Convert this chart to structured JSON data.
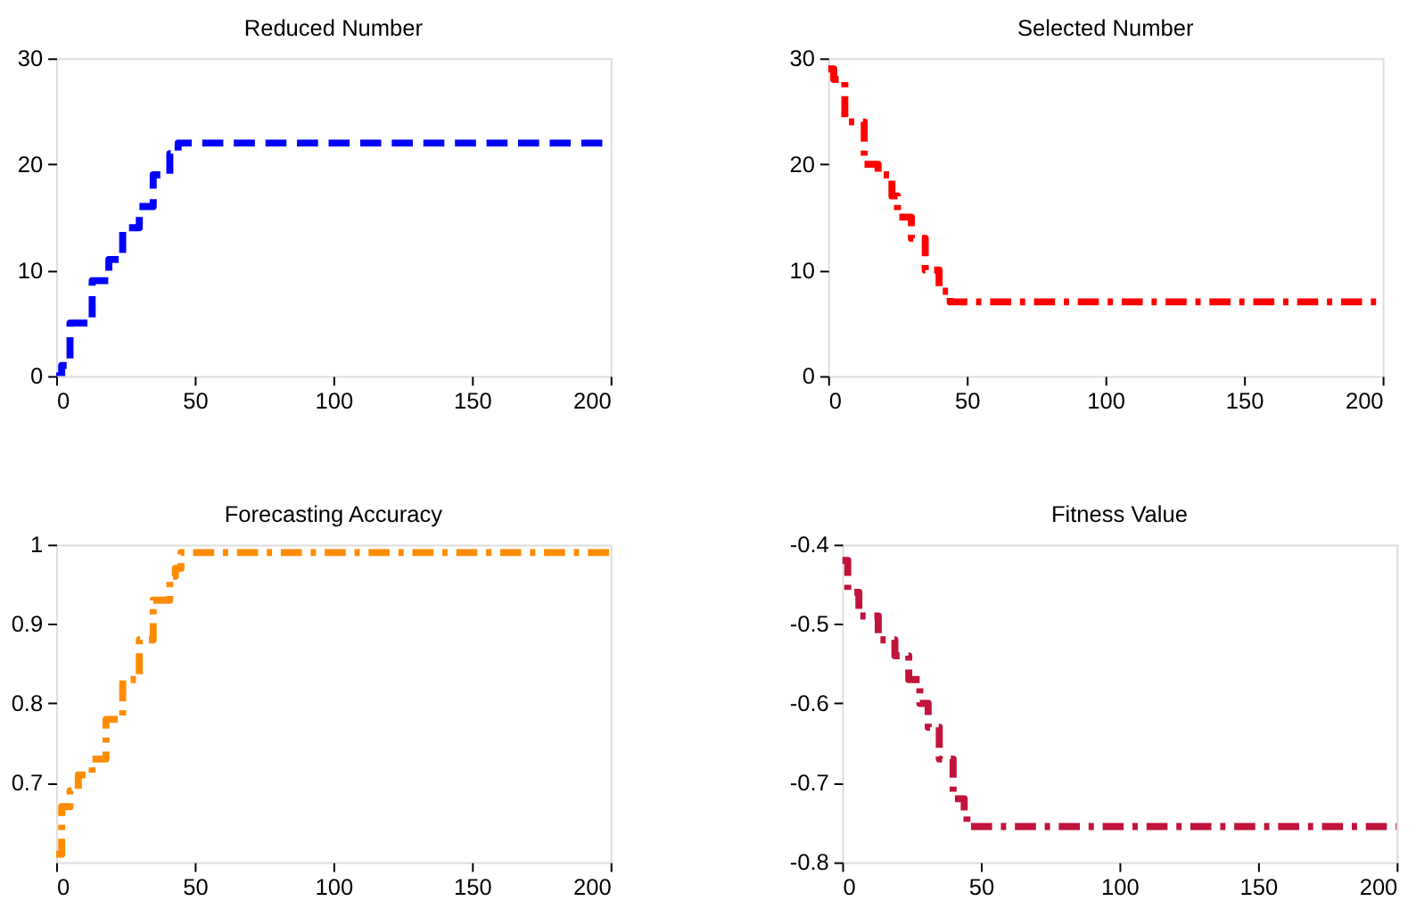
{
  "chart_data": [
    {
      "type": "step",
      "title": "Reduced Number",
      "xlim": [
        0,
        200
      ],
      "xticks": [
        0,
        50,
        100,
        150,
        200
      ],
      "ylim": [
        0,
        30
      ],
      "yticks": [
        0,
        10,
        20,
        30
      ],
      "grid": false,
      "line_style": "dashed",
      "series": [
        {
          "color": "#0000ff",
          "x": [
            0,
            2,
            5,
            13,
            19,
            24,
            30,
            35,
            41,
            44,
            200
          ],
          "values": [
            0,
            1,
            5,
            9,
            11,
            14,
            16,
            19,
            21,
            22,
            22
          ]
        }
      ]
    },
    {
      "type": "step",
      "title": "Selected Number",
      "xlim": [
        0,
        200
      ],
      "xticks": [
        0,
        50,
        100,
        150,
        200
      ],
      "ylim": [
        0,
        30
      ],
      "yticks": [
        0,
        10,
        20,
        30
      ],
      "grid": false,
      "line_style": "dashdot",
      "series": [
        {
          "color": "#ff0000",
          "x": [
            0,
            2,
            6,
            13,
            18,
            23,
            25,
            30,
            35,
            40,
            44,
            200
          ],
          "values": [
            29,
            28,
            24,
            20,
            19,
            17,
            15,
            13,
            10,
            8,
            7,
            7
          ]
        }
      ]
    },
    {
      "type": "step",
      "title": "Forecasting Accuracy",
      "xlim": [
        0,
        200
      ],
      "xticks": [
        0,
        50,
        100,
        150,
        200
      ],
      "ylim": [
        0.6,
        1
      ],
      "yticks": [
        0.7,
        0.8,
        0.9,
        1
      ],
      "grid": false,
      "line_style": "dashdot",
      "series": [
        {
          "color": "#ff8c00",
          "x": [
            0,
            2,
            5,
            8,
            13,
            18,
            24,
            30,
            35,
            41,
            43,
            45,
            200
          ],
          "values": [
            0.61,
            0.67,
            0.69,
            0.71,
            0.73,
            0.78,
            0.83,
            0.88,
            0.93,
            0.96,
            0.97,
            0.99,
            0.99
          ]
        }
      ]
    },
    {
      "type": "step",
      "title": "Fitness Value",
      "xlim": [
        0,
        200
      ],
      "xticks": [
        0,
        50,
        100,
        150,
        200
      ],
      "ylim": [
        -0.8,
        -0.4
      ],
      "yticks": [
        -0.8,
        -0.7,
        -0.6,
        -0.5,
        -0.4
      ],
      "grid": false,
      "line_style": "dashdot",
      "series": [
        {
          "color": "#c0143c",
          "x": [
            0,
            2,
            6,
            13,
            19,
            24,
            28,
            31,
            35,
            40,
            44,
            45,
            200
          ],
          "values": [
            -0.42,
            -0.46,
            -0.49,
            -0.52,
            -0.54,
            -0.57,
            -0.6,
            -0.63,
            -0.67,
            -0.72,
            -0.74,
            -0.755,
            -0.755
          ]
        }
      ]
    }
  ]
}
